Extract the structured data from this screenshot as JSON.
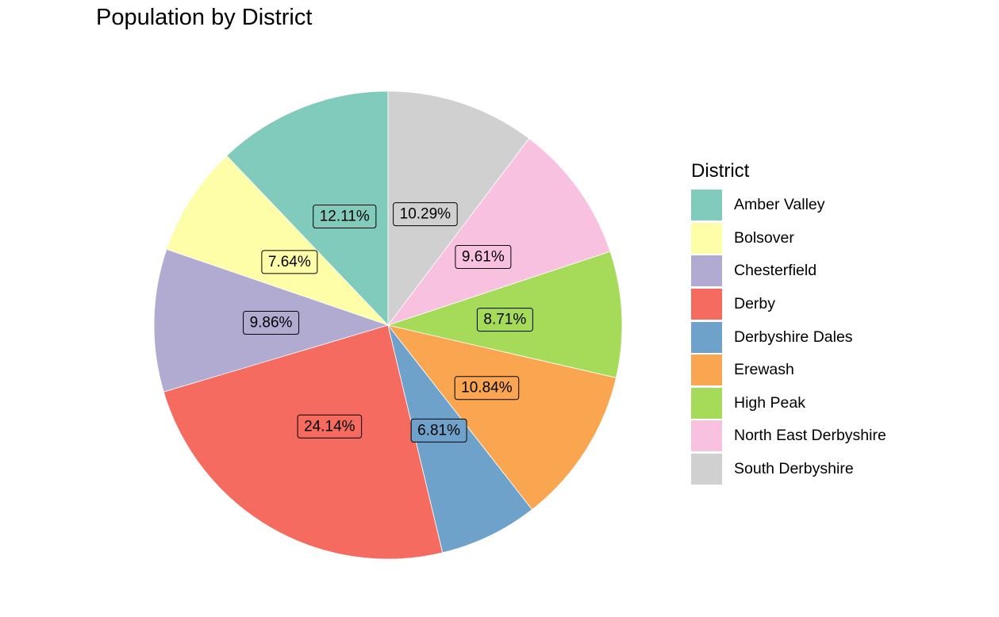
{
  "chart_data": {
    "type": "pie",
    "title": "Population by District",
    "legend_title": "District",
    "legend_position": "right",
    "slices": [
      {
        "label": "Amber Valley",
        "value": 12.11,
        "text": "12.11%",
        "color": "#80CBBC"
      },
      {
        "label": "Bolsover",
        "value": 7.64,
        "text": "7.64%",
        "color": "#FEFEA8"
      },
      {
        "label": "Chesterfield",
        "value": 9.86,
        "text": "9.86%",
        "color": "#B1ABD1"
      },
      {
        "label": "Derby",
        "value": 24.14,
        "text": "24.14%",
        "color": "#F66B60"
      },
      {
        "label": "Derbyshire Dales",
        "value": 6.81,
        "text": "6.81%",
        "color": "#6FA2CA"
      },
      {
        "label": "Erewash",
        "value": 10.84,
        "text": "10.84%",
        "color": "#FAA550"
      },
      {
        "label": "High Peak",
        "value": 8.71,
        "text": "8.71%",
        "color": "#A6DB59"
      },
      {
        "label": "North East Derbyshire",
        "value": 9.61,
        "text": "9.61%",
        "color": "#F8C1E0"
      },
      {
        "label": "South Derbyshire",
        "value": 10.29,
        "text": "10.29%",
        "color": "#D0D0D0"
      }
    ]
  }
}
